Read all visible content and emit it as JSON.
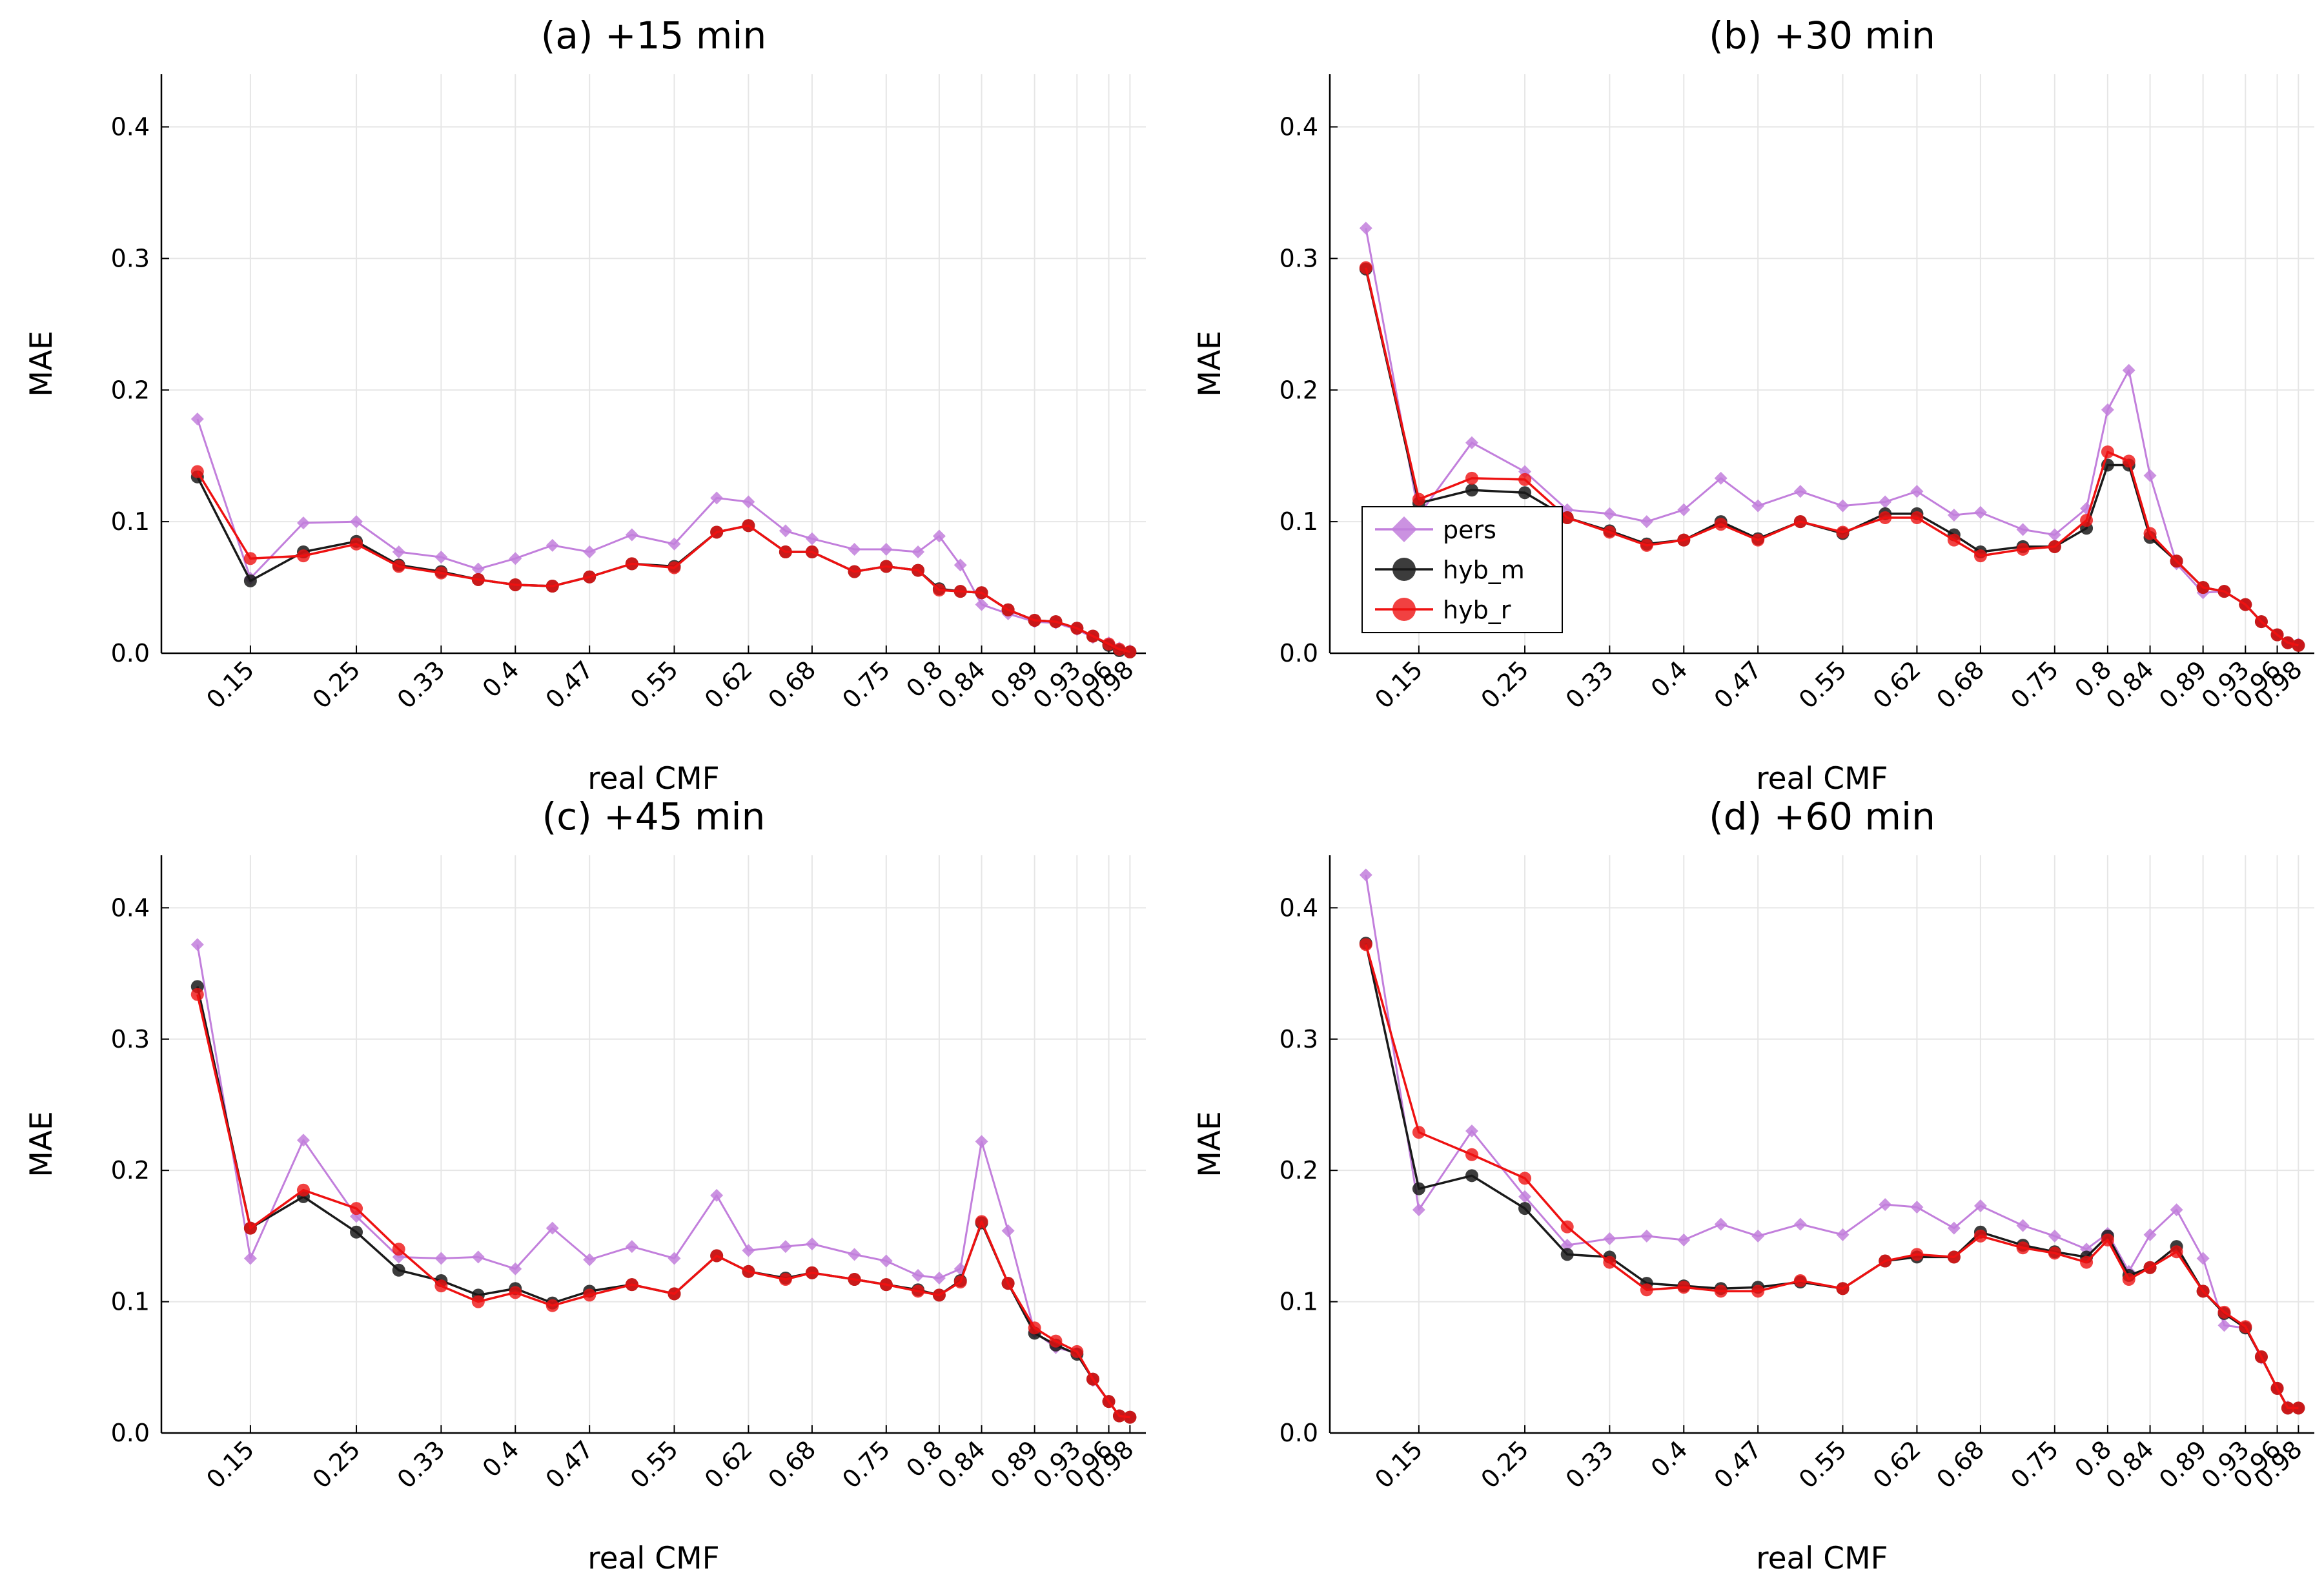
{
  "colors": {
    "pers": "#c27fdc",
    "hyb_m": "#1a1a1a",
    "hyb_r": "#ee1111",
    "grid": "#e6e6e6"
  },
  "chart_data": [
    {
      "type": "line",
      "title": "(a) +15 min",
      "xlabel": "real CMF",
      "ylabel": "MAE",
      "ylim": [
        0,
        0.44
      ],
      "yticks": [
        0.0,
        0.1,
        0.2,
        0.3,
        0.4
      ],
      "ytick_labels": [
        "0.0",
        "0.1",
        "0.2",
        "0.3",
        "0.4"
      ],
      "x": [
        0.1,
        0.15,
        0.2,
        0.25,
        0.29,
        0.33,
        0.365,
        0.4,
        0.435,
        0.47,
        0.51,
        0.55,
        0.59,
        0.62,
        0.655,
        0.68,
        0.72,
        0.75,
        0.78,
        0.8,
        0.82,
        0.84,
        0.865,
        0.89,
        0.91,
        0.93,
        0.945,
        0.96,
        0.97,
        0.98
      ],
      "xticks": [
        0.15,
        0.25,
        0.33,
        0.4,
        0.47,
        0.55,
        0.62,
        0.68,
        0.75,
        0.8,
        0.84,
        0.89,
        0.93,
        0.96,
        0.98
      ],
      "xtick_labels": [
        "0.15",
        "0.25",
        "0.33",
        "0.4",
        "0.47",
        "0.55",
        "0.62",
        "0.68",
        "0.75",
        "0.8",
        "0.84",
        "0.89",
        "0.93",
        "0.96",
        "0.98"
      ],
      "legend": false,
      "grid": true,
      "series": [
        {
          "name": "pers",
          "marker": "diamond",
          "values": [
            0.178,
            0.057,
            0.099,
            0.1,
            0.077,
            0.073,
            0.064,
            0.072,
            0.082,
            0.077,
            0.09,
            0.083,
            0.118,
            0.115,
            0.093,
            0.087,
            0.079,
            0.079,
            0.077,
            0.089,
            0.067,
            0.037,
            0.03,
            0.024,
            0.023,
            0.018,
            0.012,
            0.008,
            0.004,
            0.002
          ]
        },
        {
          "name": "hyb_m",
          "marker": "circle",
          "values": [
            0.134,
            0.055,
            0.077,
            0.085,
            0.067,
            0.062,
            0.056,
            0.052,
            0.051,
            0.058,
            0.068,
            0.066,
            0.092,
            0.097,
            0.077,
            0.077,
            0.062,
            0.066,
            0.063,
            0.049,
            0.047,
            0.046,
            0.033,
            0.025,
            0.024,
            0.019,
            0.013,
            0.006,
            0.002,
            0.001
          ]
        },
        {
          "name": "hyb_r",
          "marker": "circle",
          "values": [
            0.138,
            0.072,
            0.074,
            0.083,
            0.066,
            0.061,
            0.056,
            0.052,
            0.051,
            0.058,
            0.068,
            0.065,
            0.092,
            0.097,
            0.077,
            0.077,
            0.062,
            0.066,
            0.063,
            0.048,
            0.047,
            0.046,
            0.033,
            0.025,
            0.024,
            0.019,
            0.013,
            0.007,
            0.003,
            0.001
          ]
        }
      ]
    },
    {
      "type": "line",
      "title": "(b) +30 min",
      "xlabel": "real CMF",
      "ylabel": "MAE",
      "ylim": [
        0,
        0.44
      ],
      "yticks": [
        0.0,
        0.1,
        0.2,
        0.3,
        0.4
      ],
      "ytick_labels": [
        "0.0",
        "0.1",
        "0.2",
        "0.3",
        "0.4"
      ],
      "x": [
        0.1,
        0.15,
        0.2,
        0.25,
        0.29,
        0.33,
        0.365,
        0.4,
        0.435,
        0.47,
        0.51,
        0.55,
        0.59,
        0.62,
        0.655,
        0.68,
        0.72,
        0.75,
        0.78,
        0.8,
        0.82,
        0.84,
        0.865,
        0.89,
        0.91,
        0.93,
        0.945,
        0.96,
        0.97,
        0.98
      ],
      "xticks": [
        0.15,
        0.25,
        0.33,
        0.4,
        0.47,
        0.55,
        0.62,
        0.68,
        0.75,
        0.8,
        0.84,
        0.89,
        0.93,
        0.96,
        0.98
      ],
      "xtick_labels": [
        "0.15",
        "0.25",
        "0.33",
        "0.4",
        "0.47",
        "0.55",
        "0.62",
        "0.68",
        "0.75",
        "0.8",
        "0.84",
        "0.89",
        "0.93",
        "0.96",
        "0.98"
      ],
      "legend": true,
      "legend_position": "center-left",
      "legend_labels": [
        "pers",
        "hyb_m",
        "hyb_r"
      ],
      "grid": true,
      "series": [
        {
          "name": "pers",
          "marker": "diamond",
          "values": [
            0.323,
            0.105,
            0.16,
            0.138,
            0.109,
            0.106,
            0.1,
            0.109,
            0.133,
            0.112,
            0.123,
            0.112,
            0.115,
            0.123,
            0.105,
            0.107,
            0.094,
            0.09,
            0.11,
            0.185,
            0.215,
            0.135,
            0.068,
            0.046,
            0.047,
            0.037,
            0.024,
            0.014,
            0.008,
            0.007
          ]
        },
        {
          "name": "hyb_m",
          "marker": "circle",
          "values": [
            0.292,
            0.114,
            0.124,
            0.122,
            0.103,
            0.093,
            0.083,
            0.086,
            0.1,
            0.087,
            0.1,
            0.091,
            0.106,
            0.106,
            0.09,
            0.077,
            0.081,
            0.081,
            0.095,
            0.143,
            0.143,
            0.088,
            0.07,
            0.05,
            0.047,
            0.037,
            0.024,
            0.014,
            0.008,
            0.006
          ]
        },
        {
          "name": "hyb_r",
          "marker": "circle",
          "values": [
            0.293,
            0.117,
            0.133,
            0.132,
            0.103,
            0.092,
            0.082,
            0.086,
            0.098,
            0.086,
            0.1,
            0.092,
            0.103,
            0.103,
            0.086,
            0.074,
            0.079,
            0.081,
            0.101,
            0.153,
            0.146,
            0.091,
            0.07,
            0.05,
            0.047,
            0.037,
            0.024,
            0.014,
            0.008,
            0.006
          ]
        }
      ]
    },
    {
      "type": "line",
      "title": "(c) +45 min",
      "xlabel": "real CMF",
      "ylabel": "MAE",
      "ylim": [
        0,
        0.44
      ],
      "yticks": [
        0.0,
        0.1,
        0.2,
        0.3,
        0.4
      ],
      "ytick_labels": [
        "0.0",
        "0.1",
        "0.2",
        "0.3",
        "0.4"
      ],
      "x": [
        0.1,
        0.15,
        0.2,
        0.25,
        0.29,
        0.33,
        0.365,
        0.4,
        0.435,
        0.47,
        0.51,
        0.55,
        0.59,
        0.62,
        0.655,
        0.68,
        0.72,
        0.75,
        0.78,
        0.8,
        0.82,
        0.84,
        0.865,
        0.89,
        0.91,
        0.93,
        0.945,
        0.96,
        0.97,
        0.98
      ],
      "xticks": [
        0.15,
        0.25,
        0.33,
        0.4,
        0.47,
        0.55,
        0.62,
        0.68,
        0.75,
        0.8,
        0.84,
        0.89,
        0.93,
        0.96,
        0.98
      ],
      "xtick_labels": [
        "0.15",
        "0.25",
        "0.33",
        "0.4",
        "0.47",
        "0.55",
        "0.62",
        "0.68",
        "0.75",
        "0.8",
        "0.84",
        "0.89",
        "0.93",
        "0.96",
        "0.98"
      ],
      "legend": false,
      "grid": true,
      "series": [
        {
          "name": "pers",
          "marker": "diamond",
          "values": [
            0.372,
            0.133,
            0.223,
            0.165,
            0.134,
            0.133,
            0.134,
            0.125,
            0.156,
            0.132,
            0.142,
            0.133,
            0.181,
            0.139,
            0.142,
            0.144,
            0.136,
            0.131,
            0.12,
            0.118,
            0.125,
            0.222,
            0.154,
            0.077,
            0.065,
            0.061,
            0.04,
            0.024,
            0.013,
            0.012
          ]
        },
        {
          "name": "hyb_m",
          "marker": "circle",
          "values": [
            0.34,
            0.156,
            0.18,
            0.153,
            0.124,
            0.116,
            0.105,
            0.11,
            0.099,
            0.108,
            0.113,
            0.106,
            0.135,
            0.123,
            0.118,
            0.122,
            0.117,
            0.113,
            0.109,
            0.105,
            0.116,
            0.16,
            0.114,
            0.076,
            0.067,
            0.06,
            0.041,
            0.024,
            0.013,
            0.012
          ]
        },
        {
          "name": "hyb_r",
          "marker": "circle",
          "values": [
            0.334,
            0.156,
            0.185,
            0.171,
            0.14,
            0.112,
            0.1,
            0.107,
            0.097,
            0.105,
            0.113,
            0.106,
            0.135,
            0.123,
            0.117,
            0.122,
            0.117,
            0.113,
            0.108,
            0.105,
            0.115,
            0.161,
            0.114,
            0.08,
            0.07,
            0.062,
            0.041,
            0.024,
            0.013,
            0.012
          ]
        }
      ]
    },
    {
      "type": "line",
      "title": "(d) +60 min",
      "xlabel": "real CMF",
      "ylabel": "MAE",
      "ylim": [
        0,
        0.44
      ],
      "yticks": [
        0.0,
        0.1,
        0.2,
        0.3,
        0.4
      ],
      "ytick_labels": [
        "0.0",
        "0.1",
        "0.2",
        "0.3",
        "0.4"
      ],
      "x": [
        0.1,
        0.15,
        0.2,
        0.25,
        0.29,
        0.33,
        0.365,
        0.4,
        0.435,
        0.47,
        0.51,
        0.55,
        0.59,
        0.62,
        0.655,
        0.68,
        0.72,
        0.75,
        0.78,
        0.8,
        0.82,
        0.84,
        0.865,
        0.89,
        0.91,
        0.93,
        0.945,
        0.96,
        0.97,
        0.98
      ],
      "xticks": [
        0.15,
        0.25,
        0.33,
        0.4,
        0.47,
        0.55,
        0.62,
        0.68,
        0.75,
        0.8,
        0.84,
        0.89,
        0.93,
        0.96,
        0.98
      ],
      "xtick_labels": [
        "0.15",
        "0.25",
        "0.33",
        "0.4",
        "0.47",
        "0.55",
        "0.62",
        "0.68",
        "0.75",
        "0.8",
        "0.84",
        "0.89",
        "0.93",
        "0.96",
        "0.98"
      ],
      "legend": false,
      "grid": true,
      "series": [
        {
          "name": "pers",
          "marker": "diamond",
          "values": [
            0.425,
            0.17,
            0.23,
            0.18,
            0.143,
            0.148,
            0.15,
            0.147,
            0.159,
            0.15,
            0.159,
            0.151,
            0.174,
            0.172,
            0.156,
            0.173,
            0.158,
            0.15,
            0.14,
            0.152,
            0.123,
            0.151,
            0.17,
            0.133,
            0.082,
            0.08,
            0.057,
            0.034,
            0.02,
            0.019
          ]
        },
        {
          "name": "hyb_m",
          "marker": "circle",
          "values": [
            0.373,
            0.186,
            0.196,
            0.171,
            0.136,
            0.134,
            0.114,
            0.112,
            0.11,
            0.111,
            0.115,
            0.11,
            0.131,
            0.134,
            0.134,
            0.153,
            0.143,
            0.138,
            0.134,
            0.15,
            0.12,
            0.126,
            0.142,
            0.108,
            0.091,
            0.08,
            0.058,
            0.034,
            0.019,
            0.019
          ]
        },
        {
          "name": "hyb_r",
          "marker": "circle",
          "values": [
            0.372,
            0.229,
            0.212,
            0.194,
            0.157,
            0.13,
            0.109,
            0.111,
            0.108,
            0.108,
            0.116,
            0.11,
            0.131,
            0.136,
            0.134,
            0.15,
            0.141,
            0.137,
            0.13,
            0.147,
            0.117,
            0.126,
            0.138,
            0.108,
            0.092,
            0.081,
            0.058,
            0.034,
            0.019,
            0.019
          ]
        }
      ]
    }
  ]
}
